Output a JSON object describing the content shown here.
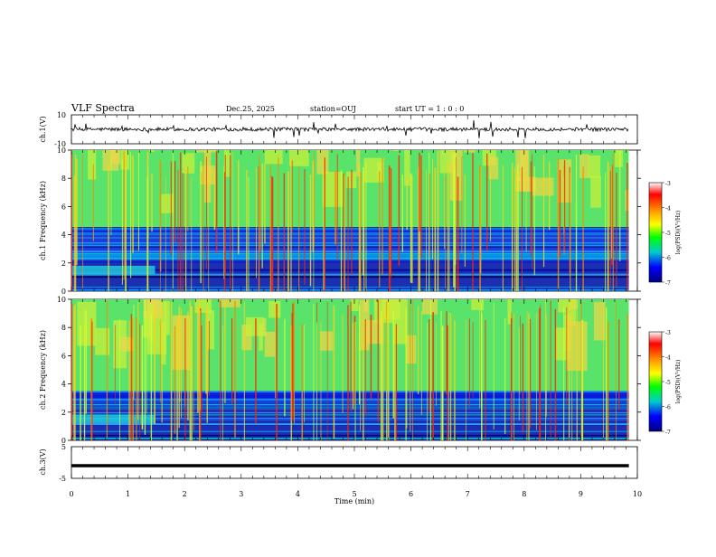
{
  "header": {
    "title": "VLF Spectra",
    "date": "Dec.25, 2025",
    "station": "station=OUJ",
    "start": "start  UT =   1 : 0  : 0"
  },
  "chart_data": {
    "type": "heatmap",
    "title": "VLF Spectra",
    "xlabel": "Time  (min)",
    "xlim": [
      0,
      10
    ],
    "x_ticks": [
      "0",
      "1",
      "2",
      "3",
      "4",
      "5",
      "6",
      "7",
      "8",
      "9",
      "10"
    ],
    "panels": [
      {
        "id": "wave1",
        "type": "line",
        "ylabel": "ch.1(V)",
        "ylim": [
          -10,
          10
        ],
        "y_ticks": [
          "10",
          "-10"
        ],
        "baseline": 0,
        "data_end_min": 9.85
      },
      {
        "id": "spec1",
        "type": "heatmap",
        "ylabel": "ch.1 Frequency (kHz)",
        "ylim": [
          0,
          10
        ],
        "y_ticks": [
          "0",
          "2",
          "4",
          "6",
          "8",
          "10"
        ],
        "data_end_min": 9.85
      },
      {
        "id": "spec2",
        "type": "heatmap",
        "ylabel": "ch.2 Frequency (kHz)",
        "ylim": [
          0,
          10
        ],
        "y_ticks": [
          "0",
          "2",
          "4",
          "6",
          "8",
          "10"
        ],
        "data_end_min": 9.85
      },
      {
        "id": "wave3",
        "type": "line",
        "ylabel": "ch.3(V)",
        "ylim": [
          -5,
          5
        ],
        "y_ticks": [
          "5",
          "-5"
        ],
        "constant_value": -1,
        "data_end_min": 9.85
      }
    ],
    "colorbar": {
      "label": "log(PSD)(V²/Hz)",
      "range": [
        -7,
        -3
      ],
      "ticks": [
        "-3",
        "-4",
        "-5",
        "-6",
        "-7"
      ],
      "colors": [
        "#ffffff",
        "#ff0000",
        "#ffa500",
        "#ffff00",
        "#00ff00",
        "#00cccc",
        "#0000ff",
        "#000080"
      ]
    }
  }
}
